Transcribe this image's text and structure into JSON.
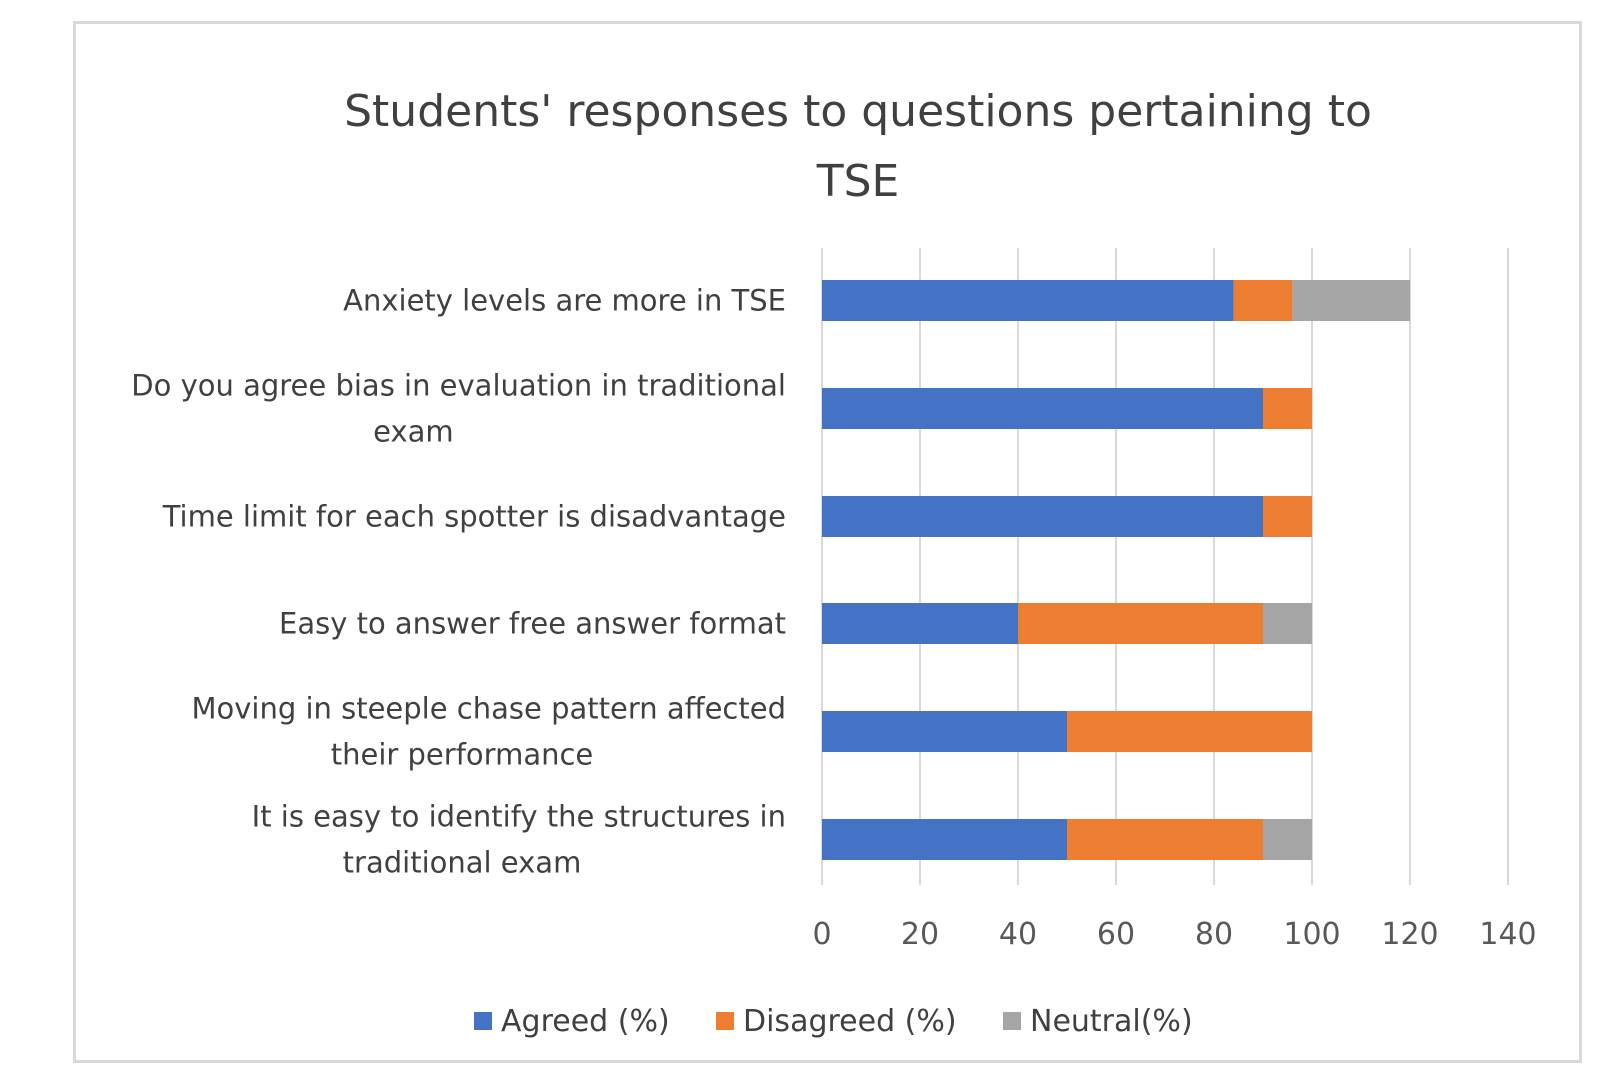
{
  "chart_data": {
    "type": "bar",
    "orientation": "horizontal",
    "stacked": true,
    "title": "Students' responses to questions pertaining to TSE",
    "title_lines": [
      "Students' responses to questions pertaining to",
      "TSE"
    ],
    "categories": [
      "Anxiety levels are more in TSE",
      "Do you agree bias in evaluation in traditional exam",
      "Time limit for each spotter is disadvantage",
      "Easy to answer free answer format",
      "Moving in steeple chase pattern affected their performance",
      "It is easy to identify the structures in traditional exam"
    ],
    "category_label_lines": [
      [
        "Anxiety levels are more in TSE"
      ],
      [
        "Do you agree bias in evaluation in traditional",
        "exam"
      ],
      [
        "Time limit for each spotter is disadvantage"
      ],
      [
        "Easy to answer free answer format"
      ],
      [
        "Moving in steeple chase pattern affected",
        "their performance"
      ],
      [
        "It is easy to identify the structures in",
        "traditional exam"
      ]
    ],
    "series": [
      {
        "name": "Agreed (%)",
        "color": "#4472c4",
        "values": [
          84,
          90,
          90,
          40,
          50,
          50
        ]
      },
      {
        "name": "Disagreed (%)",
        "color": "#ed7d31",
        "values": [
          12,
          10,
          10,
          50,
          50,
          40
        ]
      },
      {
        "name": "Neutral(%)",
        "color": "#a5a5a5",
        "values": [
          24,
          0,
          0,
          10,
          0,
          10
        ]
      }
    ],
    "xlim": [
      0,
      140
    ],
    "xticks": [
      0,
      20,
      40,
      60,
      80,
      100,
      120,
      140
    ],
    "xticks_labels": [
      "0",
      "20",
      "40",
      "60",
      "80",
      "100",
      "120",
      "140"
    ],
    "xlabel": "",
    "ylabel": "",
    "grid": "vertical",
    "legend_position": "bottom"
  }
}
